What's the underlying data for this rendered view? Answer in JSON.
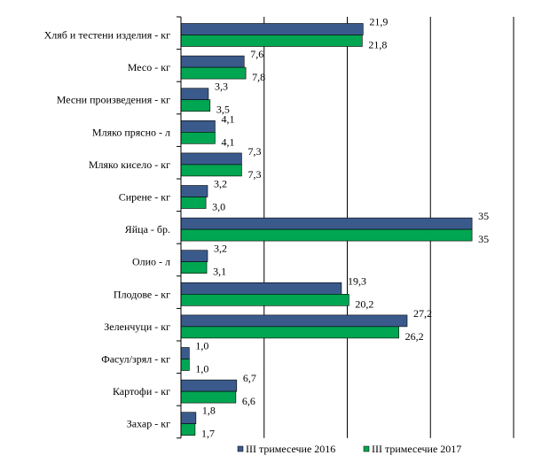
{
  "chart_data": {
    "type": "bar",
    "orientation": "horizontal",
    "categories": [
      "Хляб и тестени изделия - кг",
      "Месо - кг",
      "Месни произведения  - кг",
      "Мляко прясно - л",
      "Мляко кисело - кг",
      "Сирене - кг",
      "Яйца - бр.",
      "Олио - л",
      "Плодове - кг",
      "Зеленчуци - кг",
      "Фасул/зрял - кг",
      "Картофи - кг",
      "Захар - кг"
    ],
    "series": [
      {
        "name": "III тримесечие  2016",
        "color": "#3B5A8C",
        "values": [
          21.9,
          7.6,
          3.3,
          4.1,
          7.3,
          3.2,
          35,
          3.2,
          19.3,
          27.2,
          1.0,
          6.7,
          1.8
        ],
        "labels": [
          "21,9",
          "7,6",
          "3,3",
          "4,1",
          "7,3",
          "3,2",
          "35",
          "3,2",
          "19,3",
          "27,2",
          "1,0",
          "6,7",
          "1,8"
        ]
      },
      {
        "name": "III тримесечие  2017",
        "color": "#00A651",
        "values": [
          21.8,
          7.8,
          3.5,
          4.1,
          7.3,
          3.0,
          35,
          3.1,
          20.2,
          26.2,
          1.0,
          6.6,
          1.7
        ],
        "labels": [
          "21,8",
          "7,8",
          "3,5",
          "4,1",
          "7,3",
          "3,0",
          "35",
          "3,1",
          "20,2",
          "26,2",
          "1,0",
          "6,6",
          "1,7"
        ]
      }
    ],
    "xlim": [
      0,
      40
    ],
    "grid": true,
    "legend_position": "bottom"
  }
}
